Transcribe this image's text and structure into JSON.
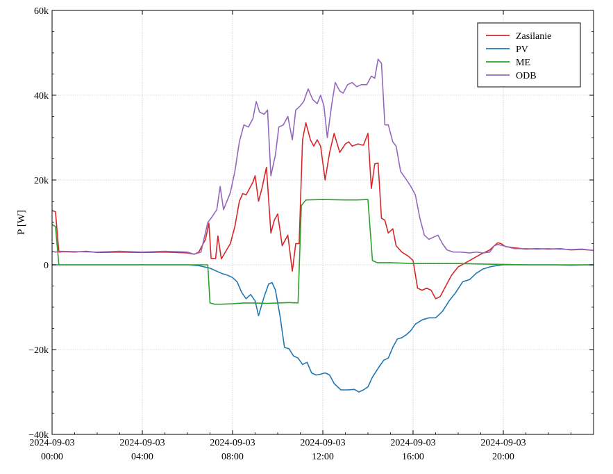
{
  "chart_data": {
    "type": "line",
    "title": "",
    "xlabel": "",
    "ylabel": "P [W]",
    "xlim": [
      0,
      24
    ],
    "ylim": [
      -40000,
      60000
    ],
    "grid": true,
    "legend_position": "top-right",
    "x_ticks": [
      {
        "x": 0,
        "date": "2024-09-03",
        "time": "00:00"
      },
      {
        "x": 4,
        "date": "2024-09-03",
        "time": "04:00"
      },
      {
        "x": 8,
        "date": "2024-09-03",
        "time": "08:00"
      },
      {
        "x": 12,
        "date": "2024-09-03",
        "time": "12:00"
      },
      {
        "x": 16,
        "date": "2024-09-03",
        "time": "16:00"
      },
      {
        "x": 20,
        "date": "2024-09-03",
        "time": "20:00"
      }
    ],
    "y_ticks": [
      {
        "value": 60000,
        "label": "60k"
      },
      {
        "value": 40000,
        "label": "40k"
      },
      {
        "value": 20000,
        "label": "20k"
      },
      {
        "value": 0,
        "label": "0"
      },
      {
        "value": -20000,
        "label": "−20k"
      },
      {
        "value": -40000,
        "label": "−40k"
      }
    ],
    "series": [
      {
        "name": "Zasilanie",
        "color": "#d62728",
        "points": [
          [
            0,
            12800
          ],
          [
            0.15,
            12500
          ],
          [
            0.3,
            3000
          ],
          [
            0.5,
            3100
          ],
          [
            1,
            3000
          ],
          [
            1.5,
            3200
          ],
          [
            2,
            2900
          ],
          [
            3,
            3000
          ],
          [
            4,
            2900
          ],
          [
            5,
            3000
          ],
          [
            6,
            2800
          ],
          [
            6.3,
            2500
          ],
          [
            6.5,
            3000
          ],
          [
            6.8,
            6000
          ],
          [
            6.95,
            9800
          ],
          [
            7.05,
            1500
          ],
          [
            7.25,
            1500
          ],
          [
            7.35,
            6800
          ],
          [
            7.5,
            1400
          ],
          [
            7.9,
            5000
          ],
          [
            8.1,
            9000
          ],
          [
            8.3,
            15000
          ],
          [
            8.45,
            16800
          ],
          [
            8.6,
            16500
          ],
          [
            8.9,
            19500
          ],
          [
            9.0,
            21000
          ],
          [
            9.15,
            15000
          ],
          [
            9.3,
            18000
          ],
          [
            9.5,
            23000
          ],
          [
            9.7,
            7500
          ],
          [
            9.85,
            10500
          ],
          [
            10.0,
            12000
          ],
          [
            10.2,
            4500
          ],
          [
            10.45,
            7000
          ],
          [
            10.65,
            -1500
          ],
          [
            10.8,
            5000
          ],
          [
            10.95,
            5000
          ],
          [
            11.1,
            29500
          ],
          [
            11.25,
            33500
          ],
          [
            11.45,
            29500
          ],
          [
            11.6,
            28000
          ],
          [
            11.75,
            29500
          ],
          [
            11.9,
            28000
          ],
          [
            12.1,
            20000
          ],
          [
            12.3,
            26500
          ],
          [
            12.5,
            31000
          ],
          [
            12.75,
            26500
          ],
          [
            13.0,
            28500
          ],
          [
            13.15,
            29000
          ],
          [
            13.3,
            28000
          ],
          [
            13.55,
            28500
          ],
          [
            13.8,
            28200
          ],
          [
            14.0,
            31000
          ],
          [
            14.15,
            18000
          ],
          [
            14.3,
            23800
          ],
          [
            14.45,
            24000
          ],
          [
            14.6,
            11000
          ],
          [
            14.75,
            10500
          ],
          [
            14.9,
            7500
          ],
          [
            15.1,
            8500
          ],
          [
            15.25,
            4500
          ],
          [
            15.5,
            3000
          ],
          [
            15.8,
            2000
          ],
          [
            16.0,
            1000
          ],
          [
            16.2,
            -5500
          ],
          [
            16.4,
            -6000
          ],
          [
            16.6,
            -5500
          ],
          [
            16.8,
            -6000
          ],
          [
            17.0,
            -8000
          ],
          [
            17.2,
            -7500
          ],
          [
            17.45,
            -5000
          ],
          [
            17.7,
            -2500
          ],
          [
            18.0,
            -500
          ],
          [
            18.5,
            1000
          ],
          [
            19.0,
            2500
          ],
          [
            19.4,
            3500
          ],
          [
            19.6,
            4500
          ],
          [
            19.75,
            5200
          ],
          [
            19.9,
            5000
          ],
          [
            20.1,
            4300
          ],
          [
            20.5,
            4000
          ],
          [
            21,
            3700
          ],
          [
            21.5,
            3800
          ],
          [
            22,
            3700
          ],
          [
            22.5,
            3800
          ],
          [
            23,
            3500
          ],
          [
            23.5,
            3600
          ],
          [
            24,
            3400
          ]
        ]
      },
      {
        "name": "PV",
        "color": "#1f77b4",
        "points": [
          [
            0,
            0
          ],
          [
            1,
            0
          ],
          [
            2,
            0
          ],
          [
            3,
            0
          ],
          [
            4,
            0
          ],
          [
            5,
            0
          ],
          [
            6,
            0
          ],
          [
            6.5,
            -200
          ],
          [
            7,
            -800
          ],
          [
            7.5,
            -2000
          ],
          [
            7.8,
            -2500
          ],
          [
            8.0,
            -3000
          ],
          [
            8.2,
            -4000
          ],
          [
            8.4,
            -6500
          ],
          [
            8.6,
            -8000
          ],
          [
            8.8,
            -7000
          ],
          [
            9.0,
            -8500
          ],
          [
            9.15,
            -12000
          ],
          [
            9.4,
            -7500
          ],
          [
            9.6,
            -4500
          ],
          [
            9.75,
            -4200
          ],
          [
            9.9,
            -6000
          ],
          [
            10.1,
            -12000
          ],
          [
            10.3,
            -19500
          ],
          [
            10.5,
            -19800
          ],
          [
            10.7,
            -21500
          ],
          [
            10.9,
            -22000
          ],
          [
            11.1,
            -23500
          ],
          [
            11.3,
            -23000
          ],
          [
            11.5,
            -25500
          ],
          [
            11.7,
            -26000
          ],
          [
            11.9,
            -25800
          ],
          [
            12.1,
            -25500
          ],
          [
            12.3,
            -26000
          ],
          [
            12.5,
            -28000
          ],
          [
            12.8,
            -29500
          ],
          [
            13.1,
            -29500
          ],
          [
            13.4,
            -29400
          ],
          [
            13.6,
            -30000
          ],
          [
            13.8,
            -29500
          ],
          [
            14.0,
            -28800
          ],
          [
            14.2,
            -26500
          ],
          [
            14.5,
            -24000
          ],
          [
            14.7,
            -22500
          ],
          [
            14.9,
            -22000
          ],
          [
            15.1,
            -19500
          ],
          [
            15.3,
            -17500
          ],
          [
            15.5,
            -17200
          ],
          [
            15.7,
            -16500
          ],
          [
            15.9,
            -15500
          ],
          [
            16.1,
            -14000
          ],
          [
            16.4,
            -13000
          ],
          [
            16.7,
            -12500
          ],
          [
            17.0,
            -12500
          ],
          [
            17.3,
            -11000
          ],
          [
            17.6,
            -8500
          ],
          [
            17.9,
            -6500
          ],
          [
            18.2,
            -4000
          ],
          [
            18.5,
            -3500
          ],
          [
            18.8,
            -2000
          ],
          [
            19.1,
            -1000
          ],
          [
            19.4,
            -500
          ],
          [
            19.7,
            -200
          ],
          [
            20,
            0
          ],
          [
            21,
            0
          ],
          [
            22,
            0
          ],
          [
            23,
            -100
          ],
          [
            24,
            0
          ]
        ]
      },
      {
        "name": "ME",
        "color": "#2ca02c",
        "points": [
          [
            0,
            9500
          ],
          [
            0.15,
            9000
          ],
          [
            0.3,
            0
          ],
          [
            1,
            0
          ],
          [
            2,
            0
          ],
          [
            3,
            0
          ],
          [
            4,
            0
          ],
          [
            5,
            0
          ],
          [
            6,
            0
          ],
          [
            6.9,
            0
          ],
          [
            7.0,
            -9000
          ],
          [
            7.2,
            -9300
          ],
          [
            7.5,
            -9300
          ],
          [
            8.0,
            -9200
          ],
          [
            8.5,
            -9000
          ],
          [
            9.0,
            -9000
          ],
          [
            9.5,
            -9100
          ],
          [
            10.0,
            -9000
          ],
          [
            10.5,
            -8900
          ],
          [
            10.9,
            -9000
          ],
          [
            11.05,
            14000
          ],
          [
            11.25,
            15300
          ],
          [
            12,
            15400
          ],
          [
            13,
            15300
          ],
          [
            13.5,
            15300
          ],
          [
            14.0,
            15400
          ],
          [
            14.2,
            1000
          ],
          [
            14.4,
            500
          ],
          [
            15,
            500
          ],
          [
            16,
            300
          ],
          [
            17,
            300
          ],
          [
            18,
            300
          ],
          [
            19,
            200
          ],
          [
            20,
            100
          ],
          [
            21,
            0
          ],
          [
            22,
            0
          ],
          [
            23,
            0
          ],
          [
            24,
            0
          ]
        ]
      },
      {
        "name": "ODB",
        "color": "#9467bd",
        "points": [
          [
            0,
            3200
          ],
          [
            0.15,
            3000
          ],
          [
            0.3,
            3200
          ],
          [
            1,
            3100
          ],
          [
            2,
            3000
          ],
          [
            3,
            3200
          ],
          [
            4,
            3000
          ],
          [
            5,
            3200
          ],
          [
            6,
            3000
          ],
          [
            6.3,
            2500
          ],
          [
            6.6,
            3000
          ],
          [
            6.9,
            10000
          ],
          [
            7.05,
            11000
          ],
          [
            7.3,
            13000
          ],
          [
            7.45,
            18500
          ],
          [
            7.6,
            13000
          ],
          [
            7.9,
            17000
          ],
          [
            8.1,
            22000
          ],
          [
            8.3,
            29000
          ],
          [
            8.5,
            33000
          ],
          [
            8.7,
            32500
          ],
          [
            8.9,
            34500
          ],
          [
            9.05,
            38500
          ],
          [
            9.2,
            36000
          ],
          [
            9.4,
            35500
          ],
          [
            9.55,
            36500
          ],
          [
            9.7,
            21000
          ],
          [
            9.9,
            26000
          ],
          [
            10.05,
            32500
          ],
          [
            10.25,
            33000
          ],
          [
            10.45,
            35000
          ],
          [
            10.65,
            29500
          ],
          [
            10.8,
            36500
          ],
          [
            11.0,
            37500
          ],
          [
            11.15,
            38500
          ],
          [
            11.35,
            41500
          ],
          [
            11.55,
            39000
          ],
          [
            11.75,
            38000
          ],
          [
            11.9,
            40000
          ],
          [
            12.05,
            37500
          ],
          [
            12.2,
            30000
          ],
          [
            12.4,
            38000
          ],
          [
            12.55,
            43000
          ],
          [
            12.75,
            41000
          ],
          [
            12.9,
            40500
          ],
          [
            13.1,
            42500
          ],
          [
            13.3,
            43000
          ],
          [
            13.5,
            42000
          ],
          [
            13.7,
            42500
          ],
          [
            13.95,
            42500
          ],
          [
            14.15,
            44500
          ],
          [
            14.3,
            44000
          ],
          [
            14.45,
            48500
          ],
          [
            14.6,
            47500
          ],
          [
            14.75,
            33000
          ],
          [
            14.9,
            33000
          ],
          [
            15.1,
            29000
          ],
          [
            15.25,
            28000
          ],
          [
            15.45,
            22000
          ],
          [
            15.65,
            20500
          ],
          [
            15.9,
            18500
          ],
          [
            16.1,
            16500
          ],
          [
            16.3,
            11000
          ],
          [
            16.5,
            7000
          ],
          [
            16.7,
            6000
          ],
          [
            16.9,
            6500
          ],
          [
            17.1,
            7000
          ],
          [
            17.3,
            5000
          ],
          [
            17.5,
            3500
          ],
          [
            17.8,
            3000
          ],
          [
            18.1,
            3000
          ],
          [
            18.5,
            2800
          ],
          [
            18.8,
            3000
          ],
          [
            19.1,
            2800
          ],
          [
            19.4,
            3000
          ],
          [
            19.6,
            4500
          ],
          [
            19.75,
            4800
          ],
          [
            20,
            4500
          ],
          [
            20.5,
            3800
          ],
          [
            21,
            3800
          ],
          [
            21.5,
            3700
          ],
          [
            22,
            3800
          ],
          [
            22.5,
            3700
          ],
          [
            23,
            3600
          ],
          [
            23.5,
            3700
          ],
          [
            24,
            3400
          ]
        ]
      }
    ]
  }
}
